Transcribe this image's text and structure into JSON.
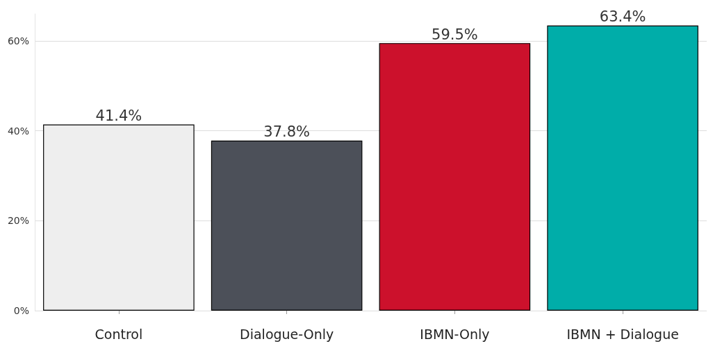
{
  "chart_data": {
    "type": "bar",
    "categories": [
      "Control",
      "Dialogue-Only",
      "IBMN-Only",
      "IBMN + Dialogue"
    ],
    "values": [
      41.4,
      37.8,
      59.5,
      63.4
    ],
    "colors": [
      "#eeeeee",
      "#4c5059",
      "#cc112c",
      "#00ada9"
    ],
    "value_labels": [
      "41.4%",
      "37.8%",
      "59.5%",
      "63.4%"
    ],
    "ylim": [
      0,
      66
    ],
    "yticks": [
      {
        "value": 0,
        "label": "0%"
      },
      {
        "value": 20,
        "label": "20%"
      },
      {
        "value": 40,
        "label": "40%"
      },
      {
        "value": 60,
        "label": "60%"
      }
    ],
    "grid": "y"
  }
}
